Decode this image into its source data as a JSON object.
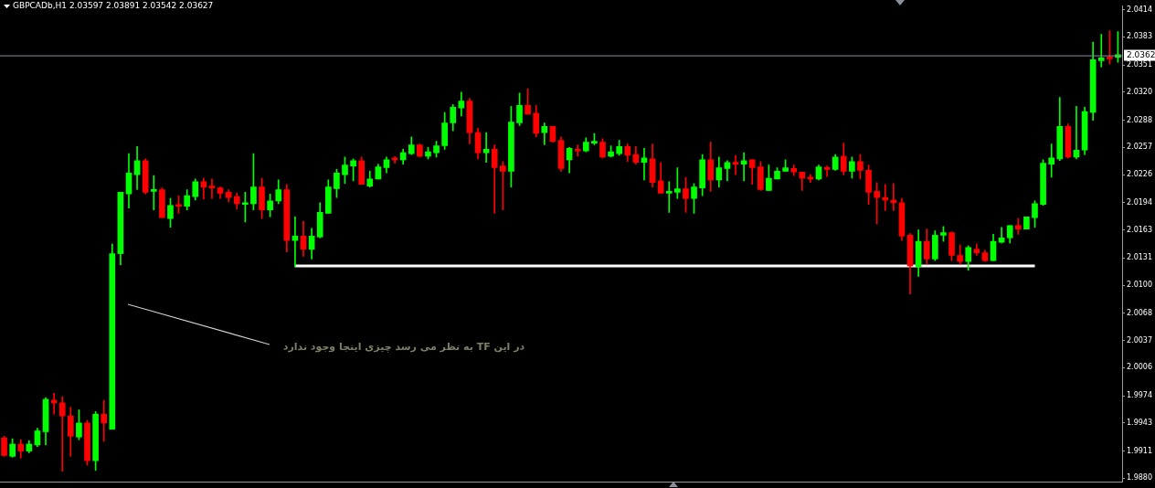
{
  "chart_data": {
    "type": "candlestick",
    "title": "GBPCADb,H1 2.03597 2.03891 2.03542 2.03627",
    "annotations": [
      "در این TF به نظر می رسد چیزی اینجا وجود ندارد"
    ],
    "categories": [
      null,
      null,
      null,
      null,
      null,
      null,
      null,
      null,
      null,
      null,
      null,
      null,
      null,
      null,
      null,
      null,
      null,
      null,
      null,
      null,
      null,
      null,
      null,
      null,
      null,
      null,
      null,
      null,
      null,
      null,
      null,
      null,
      null,
      null,
      null,
      null,
      null,
      null,
      null,
      null,
      null,
      null,
      null,
      null,
      null,
      null,
      null,
      null,
      null,
      null,
      null,
      null,
      null,
      null,
      null,
      null,
      null,
      null,
      null,
      null,
      null,
      null,
      null,
      null,
      null,
      null,
      null,
      null,
      null,
      null,
      null,
      null,
      null,
      null,
      null,
      null,
      null,
      null,
      null,
      null,
      null,
      null,
      null,
      null,
      null,
      null,
      null,
      null,
      null,
      null,
      null,
      null,
      null,
      null,
      null,
      null,
      null,
      null,
      null,
      null,
      null,
      null,
      null,
      null,
      null,
      null,
      null,
      null,
      null,
      null,
      null,
      null,
      null,
      null,
      null,
      null,
      null,
      null,
      null,
      null,
      null,
      null,
      null,
      null,
      null,
      null,
      null,
      null,
      null,
      null,
      null,
      null,
      null,
      null,
      null
    ],
    "ohlc": [
      [
        1.9926,
        1.9928,
        1.9905,
        1.9906
      ],
      [
        1.9905,
        1.9925,
        1.9904,
        1.9919
      ],
      [
        1.9919,
        1.9924,
        1.9903,
        1.9911
      ],
      [
        1.9911,
        1.9923,
        1.9909,
        1.9919
      ],
      [
        1.9918,
        1.9937,
        1.9916,
        1.9934
      ],
      [
        1.9933,
        1.9972,
        1.9918,
        1.997
      ],
      [
        1.9969,
        1.9977,
        1.9953,
        1.9966
      ],
      [
        1.9966,
        1.9973,
        1.9888,
        1.9951
      ],
      [
        1.9951,
        1.9961,
        1.9905,
        1.9928
      ],
      [
        1.9927,
        1.9958,
        1.9924,
        1.9943
      ],
      [
        1.9943,
        1.9946,
        1.9895,
        1.99
      ],
      [
        1.99,
        1.9956,
        1.9889,
        1.9953
      ],
      [
        1.9953,
        1.9969,
        1.9922,
        1.9943
      ],
      [
        1.9936,
        2.0147,
        1.9936,
        2.0136
      ],
      [
        2.0136,
        2.0206,
        2.0123,
        2.0206
      ],
      [
        2.0204,
        2.025,
        2.0188,
        2.0228
      ],
      [
        2.0226,
        2.0258,
        2.0209,
        2.0242
      ],
      [
        2.0242,
        2.0244,
        2.0204,
        2.0206
      ],
      [
        2.0207,
        2.0225,
        2.0186,
        2.0209
      ],
      [
        2.0209,
        2.0211,
        2.0177,
        2.0177
      ],
      [
        2.0176,
        2.0199,
        2.0166,
        2.0191
      ],
      [
        2.0191,
        2.0202,
        2.0182,
        2.019
      ],
      [
        2.019,
        2.0209,
        2.0186,
        2.0202
      ],
      [
        2.0201,
        2.0221,
        2.0197,
        2.0218
      ],
      [
        2.0218,
        2.0222,
        2.0198,
        2.0212
      ],
      [
        2.0213,
        2.0221,
        2.0199,
        2.0211
      ],
      [
        2.0211,
        2.0212,
        2.0199,
        2.0205
      ],
      [
        2.0206,
        2.0209,
        2.0195,
        2.02
      ],
      [
        2.0201,
        2.0205,
        2.0187,
        2.0193
      ],
      [
        2.0192,
        2.0206,
        2.0172,
        2.0194
      ],
      [
        2.0193,
        2.025,
        2.0186,
        2.0212
      ],
      [
        2.0212,
        2.0222,
        2.0176,
        2.0186
      ],
      [
        2.0186,
        2.0204,
        2.0178,
        2.0196
      ],
      [
        2.0196,
        2.022,
        2.0193,
        2.0209
      ],
      [
        2.0209,
        2.0215,
        2.0138,
        2.0151
      ],
      [
        2.0151,
        2.0178,
        2.0121,
        2.0156
      ],
      [
        2.0156,
        2.0173,
        2.0133,
        2.0141
      ],
      [
        2.0141,
        2.0165,
        2.013,
        2.0156
      ],
      [
        2.0155,
        2.0194,
        2.0154,
        2.0183
      ],
      [
        2.0182,
        2.022,
        2.0182,
        2.0212
      ],
      [
        2.021,
        2.0232,
        2.02,
        2.0228
      ],
      [
        2.0226,
        2.0246,
        2.0216,
        2.0237
      ],
      [
        2.0236,
        2.0244,
        2.0219,
        2.0242
      ],
      [
        2.0242,
        2.0246,
        2.0215,
        2.0215
      ],
      [
        2.0213,
        2.023,
        2.0212,
        2.0221
      ],
      [
        2.0221,
        2.0238,
        2.0221,
        2.0235
      ],
      [
        2.0234,
        2.0246,
        2.0228,
        2.0243
      ],
      [
        2.0245,
        2.0247,
        2.0239,
        2.0243
      ],
      [
        2.0243,
        2.0255,
        2.0238,
        2.0251
      ],
      [
        2.025,
        2.0269,
        2.0249,
        2.026
      ],
      [
        2.026,
        2.0261,
        2.0246,
        2.0247
      ],
      [
        2.0247,
        2.0257,
        2.0244,
        2.0252
      ],
      [
        2.0251,
        2.0264,
        2.0246,
        2.0259
      ],
      [
        2.0259,
        2.0297,
        2.0255,
        2.0285
      ],
      [
        2.0285,
        2.0306,
        2.0276,
        2.0303
      ],
      [
        2.0302,
        2.032,
        2.0293,
        2.031
      ],
      [
        2.031,
        2.0313,
        2.0261,
        2.0274
      ],
      [
        2.0274,
        2.0279,
        2.0244,
        2.0251
      ],
      [
        2.0251,
        2.0274,
        2.024,
        2.0255
      ],
      [
        2.0255,
        2.026,
        2.0182,
        2.0234
      ],
      [
        2.0236,
        2.0241,
        2.0186,
        2.023
      ],
      [
        2.023,
        2.0304,
        2.0212,
        2.0286
      ],
      [
        2.0285,
        2.0319,
        2.0282,
        2.0305
      ],
      [
        2.0305,
        2.0324,
        2.0295,
        2.0295
      ],
      [
        2.0296,
        2.0305,
        2.0269,
        2.0273
      ],
      [
        2.0274,
        2.0285,
        2.026,
        2.0281
      ],
      [
        2.0281,
        2.0281,
        2.0263,
        2.0264
      ],
      [
        2.0265,
        2.0269,
        2.023,
        2.0233
      ],
      [
        2.0243,
        2.0257,
        2.0228,
        2.0256
      ],
      [
        2.0255,
        2.026,
        2.0247,
        2.0253
      ],
      [
        2.0253,
        2.0268,
        2.0252,
        2.0263
      ],
      [
        2.0262,
        2.0273,
        2.026,
        2.0263
      ],
      [
        2.0263,
        2.0267,
        2.0245,
        2.0246
      ],
      [
        2.0247,
        2.0259,
        2.0246,
        2.0252
      ],
      [
        2.025,
        2.0265,
        2.0248,
        2.0258
      ],
      [
        2.0258,
        2.0261,
        2.0241,
        2.0248
      ],
      [
        2.0249,
        2.0258,
        2.0238,
        2.024
      ],
      [
        2.024,
        2.0256,
        2.022,
        2.0245
      ],
      [
        2.0244,
        2.0261,
        2.0212,
        2.0217
      ],
      [
        2.0219,
        2.024,
        2.0205,
        2.0205
      ],
      [
        2.0205,
        2.0218,
        2.0183,
        2.0207
      ],
      [
        2.0206,
        2.0234,
        2.0199,
        2.021
      ],
      [
        2.021,
        2.0223,
        2.0183,
        2.0199
      ],
      [
        2.0199,
        2.0216,
        2.0182,
        2.0212
      ],
      [
        2.0211,
        2.0249,
        2.0202,
        2.0243
      ],
      [
        2.0243,
        2.0263,
        2.0207,
        2.022
      ],
      [
        2.022,
        2.0246,
        2.0212,
        2.0234
      ],
      [
        2.0233,
        2.0242,
        2.0219,
        2.024
      ],
      [
        2.0239,
        2.0248,
        2.0226,
        2.0238
      ],
      [
        2.0238,
        2.0251,
        2.0219,
        2.0242
      ],
      [
        2.0243,
        2.0243,
        2.0215,
        2.0234
      ],
      [
        2.0235,
        2.0241,
        2.0208,
        2.0209
      ],
      [
        2.0208,
        2.0237,
        2.0208,
        2.0222
      ],
      [
        2.0221,
        2.0234,
        2.0221,
        2.023
      ],
      [
        2.023,
        2.0243,
        2.023,
        2.0234
      ],
      [
        2.0233,
        2.0237,
        2.0225,
        2.0229
      ],
      [
        2.0229,
        2.0229,
        2.0208,
        2.0222
      ],
      [
        2.0222,
        2.0226,
        2.0217,
        2.0221
      ],
      [
        2.0221,
        2.0237,
        2.022,
        2.0235
      ],
      [
        2.0234,
        2.0236,
        2.0224,
        2.0232
      ],
      [
        2.0232,
        2.0249,
        2.0231,
        2.0246
      ],
      [
        2.0247,
        2.0262,
        2.0226,
        2.023
      ],
      [
        2.023,
        2.0246,
        2.0222,
        2.0241
      ],
      [
        2.0241,
        2.0249,
        2.0221,
        2.0231
      ],
      [
        2.0231,
        2.0237,
        2.0192,
        2.0206
      ],
      [
        2.0207,
        2.0217,
        2.017,
        2.02
      ],
      [
        2.02,
        2.0215,
        2.0185,
        2.0197
      ],
      [
        2.0197,
        2.0216,
        2.0185,
        2.0194
      ],
      [
        2.0194,
        2.0199,
        2.0151,
        2.0156
      ],
      [
        2.0157,
        2.0159,
        2.009,
        2.0122
      ],
      [
        2.0121,
        2.0163,
        2.011,
        2.015
      ],
      [
        2.015,
        2.0164,
        2.0124,
        2.013
      ],
      [
        2.013,
        2.0162,
        2.0128,
        2.0157
      ],
      [
        2.0157,
        2.0167,
        2.015,
        2.016
      ],
      [
        2.016,
        2.0161,
        2.0128,
        2.0134
      ],
      [
        2.0134,
        2.0146,
        2.0124,
        2.0127
      ],
      [
        2.0127,
        2.0145,
        2.0117,
        2.0143
      ],
      [
        2.0141,
        2.0147,
        2.0134,
        2.0137
      ],
      [
        2.0137,
        2.014,
        2.0127,
        2.0128
      ],
      [
        2.0128,
        2.0158,
        2.0128,
        2.015
      ],
      [
        2.0149,
        2.0166,
        2.0148,
        2.0154
      ],
      [
        2.0154,
        2.0168,
        2.0148,
        2.0168
      ],
      [
        2.0168,
        2.0176,
        2.0158,
        2.0164
      ],
      [
        2.0164,
        2.0178,
        2.0164,
        2.0178
      ],
      [
        2.0177,
        2.0196,
        2.0166,
        2.0193
      ],
      [
        2.0192,
        2.0243,
        2.0191,
        2.0239
      ],
      [
        2.0238,
        2.0261,
        2.0223,
        2.0245
      ],
      [
        2.0244,
        2.0314,
        2.0242,
        2.0281
      ],
      [
        2.0281,
        2.0284,
        2.0245,
        2.0246
      ],
      [
        2.0246,
        2.0304,
        2.0244,
        2.0254
      ],
      [
        2.0254,
        2.0303,
        2.0249,
        2.0298
      ],
      [
        2.0297,
        2.0377,
        2.0288,
        2.0357
      ],
      [
        2.0356,
        2.0386,
        2.0349,
        2.0359
      ],
      [
        2.036,
        2.039,
        2.0352,
        2.0358
      ],
      [
        2.03597,
        2.03891,
        2.03542,
        2.03627
      ]
    ],
    "colors": [
      "#ff0000",
      "#00ff00",
      "#ff0000",
      "#00ff00",
      "#00ff00",
      "#00ff00",
      "#ff0000",
      "#ff0000",
      "#ff0000",
      "#00ff00",
      "#ff0000",
      "#00ff00",
      "#ff0000",
      "#00ff00",
      "#00ff00",
      "#00ff00",
      "#00ff00",
      "#ff0000",
      "#00ff00",
      "#ff0000",
      "#00ff00",
      "#ff0000",
      "#00ff00",
      "#00ff00",
      "#ff0000",
      "#ff0000",
      "#ff0000",
      "#ff0000",
      "#ff0000",
      "#00ff00",
      "#00ff00",
      "#ff0000",
      "#00ff00",
      "#00ff00",
      "#ff0000",
      "#00ff00",
      "#ff0000",
      "#00ff00",
      "#00ff00",
      "#00ff00",
      "#00ff00",
      "#00ff00",
      "#00ff00",
      "#ff0000",
      "#00ff00",
      "#00ff00",
      "#00ff00",
      "#ff0000",
      "#00ff00",
      "#00ff00",
      "#ff0000",
      "#00ff00",
      "#00ff00",
      "#00ff00",
      "#00ff00",
      "#00ff00",
      "#ff0000",
      "#ff0000",
      "#00ff00",
      "#ff0000",
      "#ff0000",
      "#00ff00",
      "#00ff00",
      "#ff0000",
      "#ff0000",
      "#00ff00",
      "#ff0000",
      "#ff0000",
      "#00ff00",
      "#ff0000",
      "#00ff00",
      "#00ff00",
      "#ff0000",
      "#00ff00",
      "#00ff00",
      "#ff0000",
      "#ff0000",
      "#00ff00",
      "#ff0000",
      "#ff0000",
      "#00ff00",
      "#00ff00",
      "#ff0000",
      "#00ff00",
      "#00ff00",
      "#ff0000",
      "#00ff00",
      "#00ff00",
      "#ff0000",
      "#00ff00",
      "#ff0000",
      "#ff0000",
      "#00ff00",
      "#00ff00",
      "#00ff00",
      "#ff0000",
      "#ff0000",
      "#ff0000",
      "#00ff00",
      "#ff0000",
      "#00ff00",
      "#ff0000",
      "#00ff00",
      "#ff0000",
      "#ff0000",
      "#ff0000",
      "#ff0000",
      "#ff0000",
      "#ff0000",
      "#ff0000",
      "#00ff00",
      "#ff0000",
      "#00ff00",
      "#00ff00",
      "#ff0000",
      "#ff0000",
      "#00ff00",
      "#ff0000",
      "#ff0000",
      "#00ff00",
      "#00ff00",
      "#00ff00",
      "#ff0000",
      "#00ff00",
      "#00ff00",
      "#00ff00",
      "#00ff00",
      "#00ff00",
      "#ff0000",
      "#00ff00",
      "#00ff00",
      "#00ff00",
      "#00ff00",
      "#ff0000",
      "#00ff00"
    ],
    "series": [
      {
        "type": "line",
        "color": "#ffffff",
        "values": [
          null,
          null,
          null,
          null,
          null,
          null,
          null,
          null,
          null,
          null,
          null,
          null,
          null,
          null,
          null,
          null,
          null,
          null,
          null,
          null,
          null,
          null,
          null,
          null,
          null,
          null,
          null,
          null,
          null,
          null,
          null,
          null,
          null,
          null,
          null,
          2.0122,
          2.0122,
          2.0122,
          2.0122,
          2.0122,
          2.0122,
          2.0122,
          2.0122,
          2.0122,
          2.0122,
          2.0122,
          2.0122,
          2.0122,
          2.0122,
          2.0122,
          2.0122,
          2.0122,
          2.0122,
          2.0122,
          2.0122,
          2.0122,
          2.0122,
          2.0122,
          2.0122,
          2.0122,
          2.0122,
          2.0122,
          2.0122,
          2.0122,
          2.0122,
          2.0122,
          2.0122,
          2.0122,
          2.0122,
          2.0122,
          2.0122,
          2.0122,
          2.0122,
          2.0122,
          2.0122,
          2.0122,
          2.0122,
          2.0122,
          2.0122,
          2.0122,
          2.0122,
          2.0122,
          2.0122,
          2.0122,
          2.0122,
          2.0122,
          2.0122,
          2.0122,
          2.0122,
          2.0122,
          2.0122,
          2.0122,
          2.0122,
          2.0122,
          2.0122,
          2.0122,
          2.0122,
          2.0122,
          2.0122,
          2.0122,
          2.0122,
          2.0122,
          2.0122,
          2.0122,
          2.0122,
          2.0122,
          2.0122,
          2.0122,
          2.0122,
          2.0122,
          2.0122,
          2.0122,
          2.0122,
          2.0122,
          2.0122,
          2.0122,
          2.0122,
          2.0122,
          2.0122,
          2.0122,
          2.0122,
          2.0122,
          2.0122,
          2.0122,
          2.0122,
          null,
          null,
          null,
          null,
          null,
          null,
          null,
          null,
          null,
          null
        ]
      }
    ],
    "ylim": [
      1.9876,
      2.0418
    ],
    "yticks": [
      2.0414,
      2.0383,
      2.0351,
      {
        "value": 2.032,
        "label": "2.0320"
      },
      2.0288,
      2.0257,
      2.0226,
      2.0194,
      2.0163,
      2.0131,
      {
        "value": 2.01,
        "label": "2.0100"
      },
      2.0068,
      2.0037,
      2.0006,
      1.9974,
      1.9943,
      1.9911,
      {
        "value": 1.988,
        "label": "1.9880"
      }
    ],
    "ref_lines": [
      {
        "axis": "y",
        "value": 2.0362,
        "label": "2.0362",
        "color": "#8a8f9c"
      }
    ],
    "tick_labels": "y"
  }
}
